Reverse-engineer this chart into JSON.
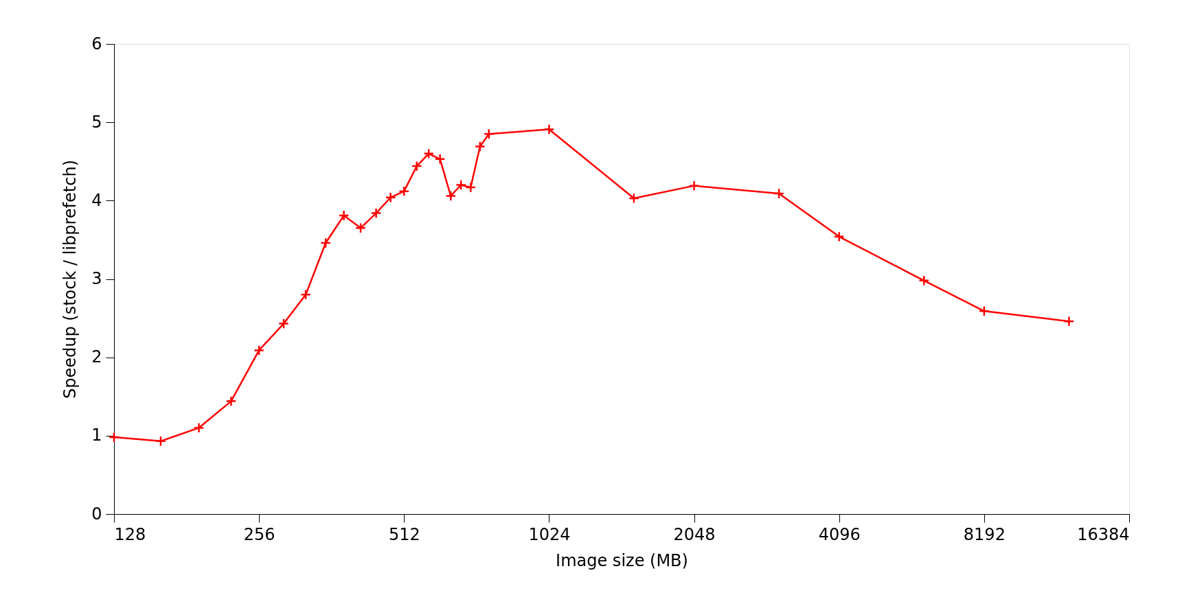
{
  "chart_data": {
    "type": "line",
    "xlabel": "Image size (MB)",
    "ylabel": "Speedup (stock / libprefetch)",
    "x": [
      128,
      160,
      192,
      224,
      256,
      288,
      320,
      352,
      384,
      416,
      448,
      480,
      512,
      544,
      576,
      608,
      640,
      672,
      704,
      736,
      768,
      1024,
      1536,
      2048,
      3072,
      4096,
      6144,
      8192,
      12288
    ],
    "series": [
      {
        "color": "#ff0000",
        "values": [
          0.98,
          0.93,
          1.1,
          1.44,
          2.09,
          2.43,
          2.8,
          3.46,
          3.81,
          3.65,
          3.84,
          4.04,
          4.12,
          4.44,
          4.6,
          4.53,
          4.06,
          4.2,
          4.17,
          4.69,
          4.85,
          4.91,
          4.03,
          4.19,
          4.09,
          3.54,
          2.98,
          2.59,
          2.46
        ]
      }
    ],
    "log": "x",
    "xlim": [
      128,
      16384
    ],
    "xticks": [
      128,
      256,
      512,
      1024,
      2048,
      4096,
      8192,
      16384
    ],
    "ylim": [
      0,
      6
    ],
    "yticks": [
      0,
      1,
      2,
      3,
      4,
      5,
      6
    ],
    "marker": "cross",
    "line_style": "solid",
    "grid": false
  }
}
